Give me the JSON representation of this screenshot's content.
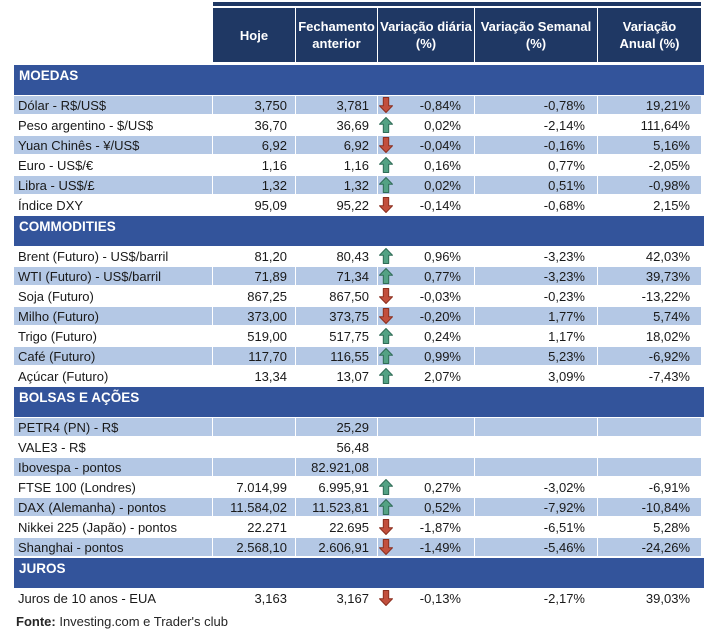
{
  "chart_data": {
    "type": "table",
    "columns": [
      "Hoje",
      "Fechamento\nanterior",
      "Variação diária\n(%)",
      "Variação Semanal\n(%)",
      "Variação\nAnual (%)"
    ],
    "sections": [
      {
        "title": "MOEDAS",
        "rows": [
          {
            "label": "Dólar - R$/US$",
            "hoje": "3,750",
            "fechamento": "3,781",
            "arrow": "down",
            "diaria": "-0,84%",
            "semanal": "-0,78%",
            "anual": "19,21%"
          },
          {
            "label": "Peso argentino - $/US$",
            "hoje": "36,70",
            "fechamento": "36,69",
            "arrow": "up",
            "diaria": "0,02%",
            "semanal": "-2,14%",
            "anual": "111,64%"
          },
          {
            "label": "Yuan Chinês - ¥/US$",
            "hoje": "6,92",
            "fechamento": "6,92",
            "arrow": "down",
            "diaria": "-0,04%",
            "semanal": "-0,16%",
            "anual": "5,16%"
          },
          {
            "label": "Euro - US$/€",
            "hoje": "1,16",
            "fechamento": "1,16",
            "arrow": "up",
            "diaria": "0,16%",
            "semanal": "0,77%",
            "anual": "-2,05%"
          },
          {
            "label": "Libra - US$/£",
            "hoje": "1,32",
            "fechamento": "1,32",
            "arrow": "up",
            "diaria": "0,02%",
            "semanal": "0,51%",
            "anual": "-0,98%"
          },
          {
            "label": "Índice DXY",
            "hoje": "95,09",
            "fechamento": "95,22",
            "arrow": "down",
            "diaria": "-0,14%",
            "semanal": "-0,68%",
            "anual": "2,15%"
          }
        ]
      },
      {
        "title": "COMMODITIES",
        "rows": [
          {
            "label": "Brent (Futuro) - US$/barril",
            "hoje": "81,20",
            "fechamento": "80,43",
            "arrow": "up",
            "diaria": "0,96%",
            "semanal": "-3,23%",
            "anual": "42,03%"
          },
          {
            "label": "WTI (Futuro) - US$/barril",
            "hoje": "71,89",
            "fechamento": "71,34",
            "arrow": "up",
            "diaria": "0,77%",
            "semanal": "-3,23%",
            "anual": "39,73%"
          },
          {
            "label": "Soja (Futuro)",
            "hoje": "867,25",
            "fechamento": "867,50",
            "arrow": "down",
            "diaria": "-0,03%",
            "semanal": "-0,23%",
            "anual": "-13,22%"
          },
          {
            "label": "Milho (Futuro)",
            "hoje": "373,00",
            "fechamento": "373,75",
            "arrow": "down",
            "diaria": "-0,20%",
            "semanal": "1,77%",
            "anual": "5,74%"
          },
          {
            "label": "Trigo (Futuro)",
            "hoje": "519,00",
            "fechamento": "517,75",
            "arrow": "up",
            "diaria": "0,24%",
            "semanal": "1,17%",
            "anual": "18,02%"
          },
          {
            "label": "Café (Futuro)",
            "hoje": "117,70",
            "fechamento": "116,55",
            "arrow": "up",
            "diaria": "0,99%",
            "semanal": "5,23%",
            "anual": "-6,92%"
          },
          {
            "label": "Açúcar (Futuro)",
            "hoje": "13,34",
            "fechamento": "13,07",
            "arrow": "up",
            "diaria": "2,07%",
            "semanal": "3,09%",
            "anual": "-7,43%"
          }
        ]
      },
      {
        "title": "BOLSAS E AÇÕES",
        "rows": [
          {
            "label": "PETR4 (PN) - R$",
            "hoje": "",
            "fechamento": "25,29",
            "arrow": "",
            "diaria": "",
            "semanal": "",
            "anual": ""
          },
          {
            "label": "VALE3 - R$",
            "hoje": "",
            "fechamento": "56,48",
            "arrow": "",
            "diaria": "",
            "semanal": "",
            "anual": ""
          },
          {
            "label": "Ibovespa - pontos",
            "hoje": "",
            "fechamento": "82.921,08",
            "arrow": "",
            "diaria": "",
            "semanal": "",
            "anual": ""
          },
          {
            "label": "FTSE 100 (Londres)",
            "hoje": "7.014,99",
            "fechamento": "6.995,91",
            "arrow": "up",
            "diaria": "0,27%",
            "semanal": "-3,02%",
            "anual": "-6,91%"
          },
          {
            "label": "DAX (Alemanha) - pontos",
            "hoje": "11.584,02",
            "fechamento": "11.523,81",
            "arrow": "up",
            "diaria": "0,52%",
            "semanal": "-7,92%",
            "anual": "-10,84%"
          },
          {
            "label": "Nikkei 225 (Japão) - pontos",
            "hoje": "22.271",
            "fechamento": "22.695",
            "arrow": "down",
            "diaria": "-1,87%",
            "semanal": "-6,51%",
            "anual": "5,28%"
          },
          {
            "label": "Shanghai - pontos",
            "hoje": "2.568,10",
            "fechamento": "2.606,91",
            "arrow": "down",
            "diaria": "-1,49%",
            "semanal": "-5,46%",
            "anual": "-24,26%"
          }
        ]
      },
      {
        "title": "JUROS",
        "rows": [
          {
            "label": "Juros de 10 anos - EUA",
            "hoje": "3,163",
            "fechamento": "3,167",
            "arrow": "down",
            "diaria": "-0,13%",
            "semanal": "-2,17%",
            "anual": "39,03%"
          }
        ]
      }
    ]
  },
  "footer": {
    "label": "Fonte:",
    "text": " Investing.com e Trader's club"
  },
  "colors": {
    "header_bg": "#1F3864",
    "band_bg": "#33549B",
    "row_alt_bg": "#B4C8E5",
    "text": "#1A1A1A",
    "arrow_up": "#53A284",
    "arrow_up_stroke": "#2F6B56",
    "arrow_down": "#C24F3D",
    "arrow_down_stroke": "#8A2F1F"
  }
}
